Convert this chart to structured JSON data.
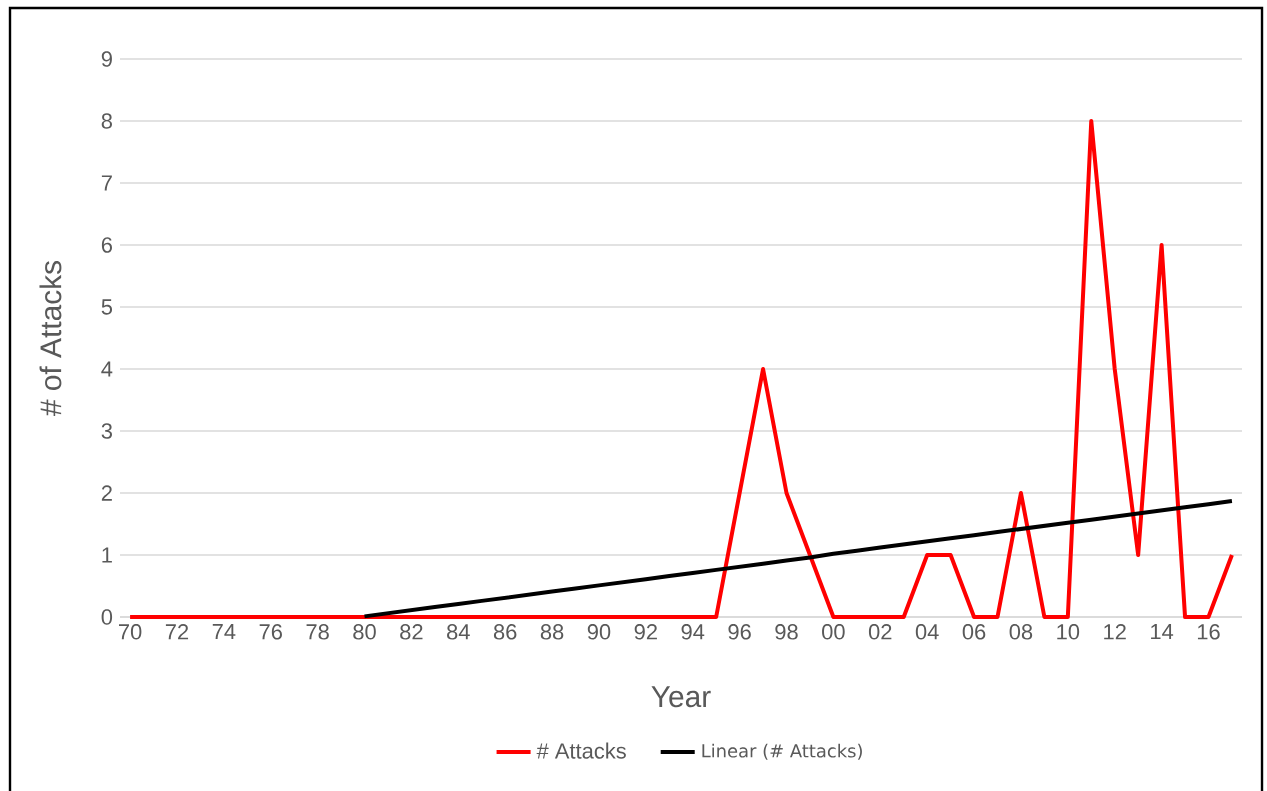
{
  "chart_data": {
    "type": "line",
    "xlabel": "Year",
    "ylabel": "# of Attacks",
    "categories": [
      "70",
      null,
      "72",
      null,
      "74",
      null,
      "76",
      null,
      "78",
      null,
      "80",
      null,
      "82",
      null,
      "84",
      null,
      "86",
      null,
      "88",
      null,
      "90",
      null,
      "92",
      null,
      "94",
      null,
      "96",
      null,
      "98",
      null,
      "00",
      null,
      "02",
      null,
      "04",
      null,
      "06",
      null,
      "08",
      null,
      "10",
      null,
      "12",
      null,
      "14",
      null,
      "16",
      null
    ],
    "series": [
      {
        "name": "# Attacks",
        "color": "#ff0000",
        "values": [
          0,
          0,
          0,
          0,
          0,
          0,
          0,
          0,
          0,
          0,
          0,
          0,
          0,
          0,
          0,
          0,
          0,
          0,
          0,
          0,
          0,
          0,
          0,
          0,
          0,
          0,
          2,
          4,
          2,
          1,
          0,
          0,
          0,
          0,
          1,
          1,
          0,
          0,
          2,
          0,
          0,
          8,
          4,
          1,
          6,
          0,
          0,
          1
        ]
      },
      {
        "name": "Linear (# Attacks)",
        "type": "line",
        "color": "#000000",
        "values": [
          null,
          null,
          null,
          null,
          null,
          null,
          null,
          null,
          null,
          null,
          0.01,
          0.06,
          0.11,
          0.16,
          0.21,
          0.26,
          0.31,
          0.36,
          0.41,
          0.46,
          0.51,
          0.56,
          0.61,
          0.66,
          0.71,
          0.76,
          0.81,
          0.86,
          0.91,
          0.96,
          1.02,
          1.07,
          1.12,
          1.17,
          1.22,
          1.27,
          1.32,
          1.37,
          1.42,
          1.47,
          1.52,
          1.57,
          1.62,
          1.67,
          1.72,
          1.77,
          1.82,
          1.87
        ]
      }
    ],
    "ylim": [
      0,
      9
    ],
    "yticks": [
      0,
      1,
      2,
      3,
      4,
      5,
      6,
      7,
      8,
      9
    ],
    "grid": "y",
    "legend": "bottom"
  }
}
